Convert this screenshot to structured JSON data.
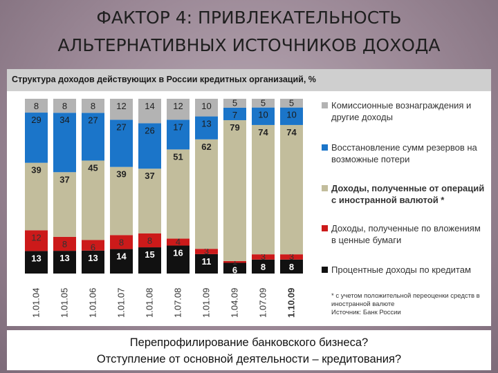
{
  "slide": {
    "title_line1": "ФАКТОР 4: ПРИВЛЕКАТЕЛЬНОСТЬ",
    "title_line2": "АЛЬТЕРНАТИВНЫХ ИСТОЧНИКОВ ДОХОДА",
    "question1": "Перепрофилирование банковского бизнеса?",
    "question2": "Отступление от основной деятельности – кредитования?"
  },
  "chart_data": {
    "type": "bar",
    "stacked": true,
    "percent": true,
    "title": "Структура доходов действующих в России кредитных организаций, %",
    "categories": [
      "1.01.04",
      "1.01.05",
      "1.01.06",
      "1.01.07",
      "1.01.08",
      "1.07.08",
      "1.01.09",
      "1.04.09",
      "1.07.09",
      "1.10.09"
    ],
    "series": [
      {
        "name": "Процентные доходы по кредитам",
        "color": "#111111",
        "label_color": "#ffffff",
        "values": [
          13,
          13,
          13,
          14,
          15,
          16,
          11,
          6,
          8,
          8
        ]
      },
      {
        "name": "Доходы, полученные по вложениям в ценные бумаги",
        "color": "#cc1a1a",
        "label_color": "#333333",
        "values": [
          12,
          8,
          6,
          8,
          8,
          4,
          3,
          1,
          3,
          3
        ]
      },
      {
        "name": "Доходы, полученные от операций с иностранной валютой *",
        "color": "#c2bd9c",
        "label_color": "#222222",
        "values": [
          39,
          37,
          45,
          39,
          37,
          51,
          62,
          79,
          74,
          74
        ]
      },
      {
        "name": "Восстановление сумм резервов на возможные потери",
        "color": "#1b75c9",
        "label_color": "#1a1a1a",
        "values": [
          29,
          34,
          27,
          27,
          26,
          17,
          13,
          7,
          10,
          10
        ]
      },
      {
        "name": "Комиссионные вознаграждения и другие доходы",
        "color": "#b3b3b3",
        "label_color": "#222222",
        "values": [
          8,
          8,
          8,
          12,
          14,
          12,
          10,
          5,
          5,
          5
        ]
      }
    ],
    "legend_position": "right",
    "footnote": "* с учетом положительной переоценки средств в иностранной валюте",
    "source": "Источник: Банк России"
  }
}
